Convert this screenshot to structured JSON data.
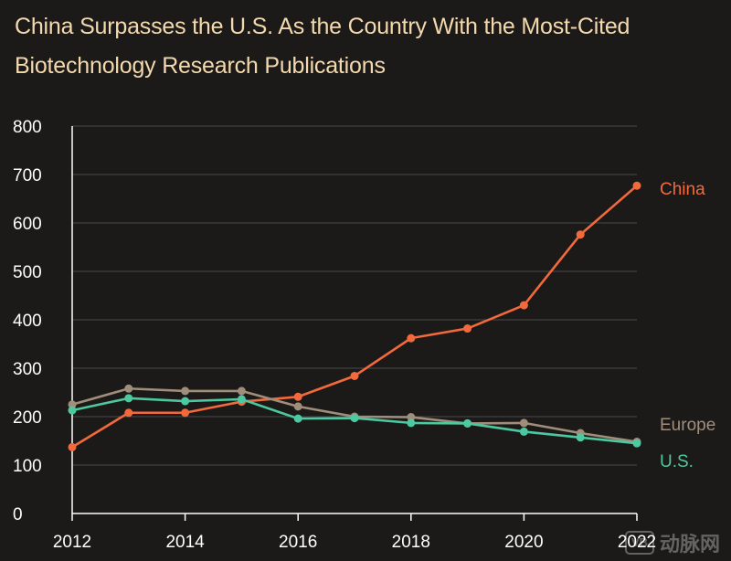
{
  "title_lines": [
    "China Surpasses the U.S. As the Country With the Most-Cited",
    "Biotechnology Research Publications"
  ],
  "watermark": {
    "badge": "VB",
    "text": "动脉网"
  },
  "colors": {
    "background": "#1b1a19",
    "title": "#f3d9ad",
    "axis_text": "#ffffff",
    "grid": "#4a4a4a",
    "china": "#f26a3b",
    "europe": "#a08e7a",
    "us": "#4cc9a0"
  },
  "chart_data": {
    "type": "line",
    "title": "China Surpasses the U.S. As the Country With the Most-Cited Biotechnology Research Publications",
    "x": [
      2012,
      2013,
      2014,
      2015,
      2016,
      2017,
      2018,
      2019,
      2020,
      2021,
      2022
    ],
    "xticks": [
      "2012",
      "2014",
      "2016",
      "2018",
      "2020",
      "2022"
    ],
    "xlim": [
      2012,
      2022
    ],
    "ylim": [
      0,
      800
    ],
    "yticks": [
      "0",
      "100",
      "200",
      "300",
      "400",
      "500",
      "600",
      "700",
      "800"
    ],
    "grid": true,
    "legend": "direct-labels-right",
    "series": [
      {
        "name": "China",
        "key": "china",
        "values": [
          137,
          208,
          208,
          231,
          241,
          284,
          362,
          382,
          430,
          576,
          677
        ]
      },
      {
        "name": "Europe",
        "key": "europe",
        "values": [
          225,
          258,
          253,
          253,
          221,
          200,
          199,
          186,
          187,
          166,
          148
        ]
      },
      {
        "name": "U.S.",
        "key": "us",
        "values": [
          213,
          238,
          232,
          236,
          196,
          197,
          187,
          186,
          169,
          157,
          145
        ]
      }
    ]
  }
}
